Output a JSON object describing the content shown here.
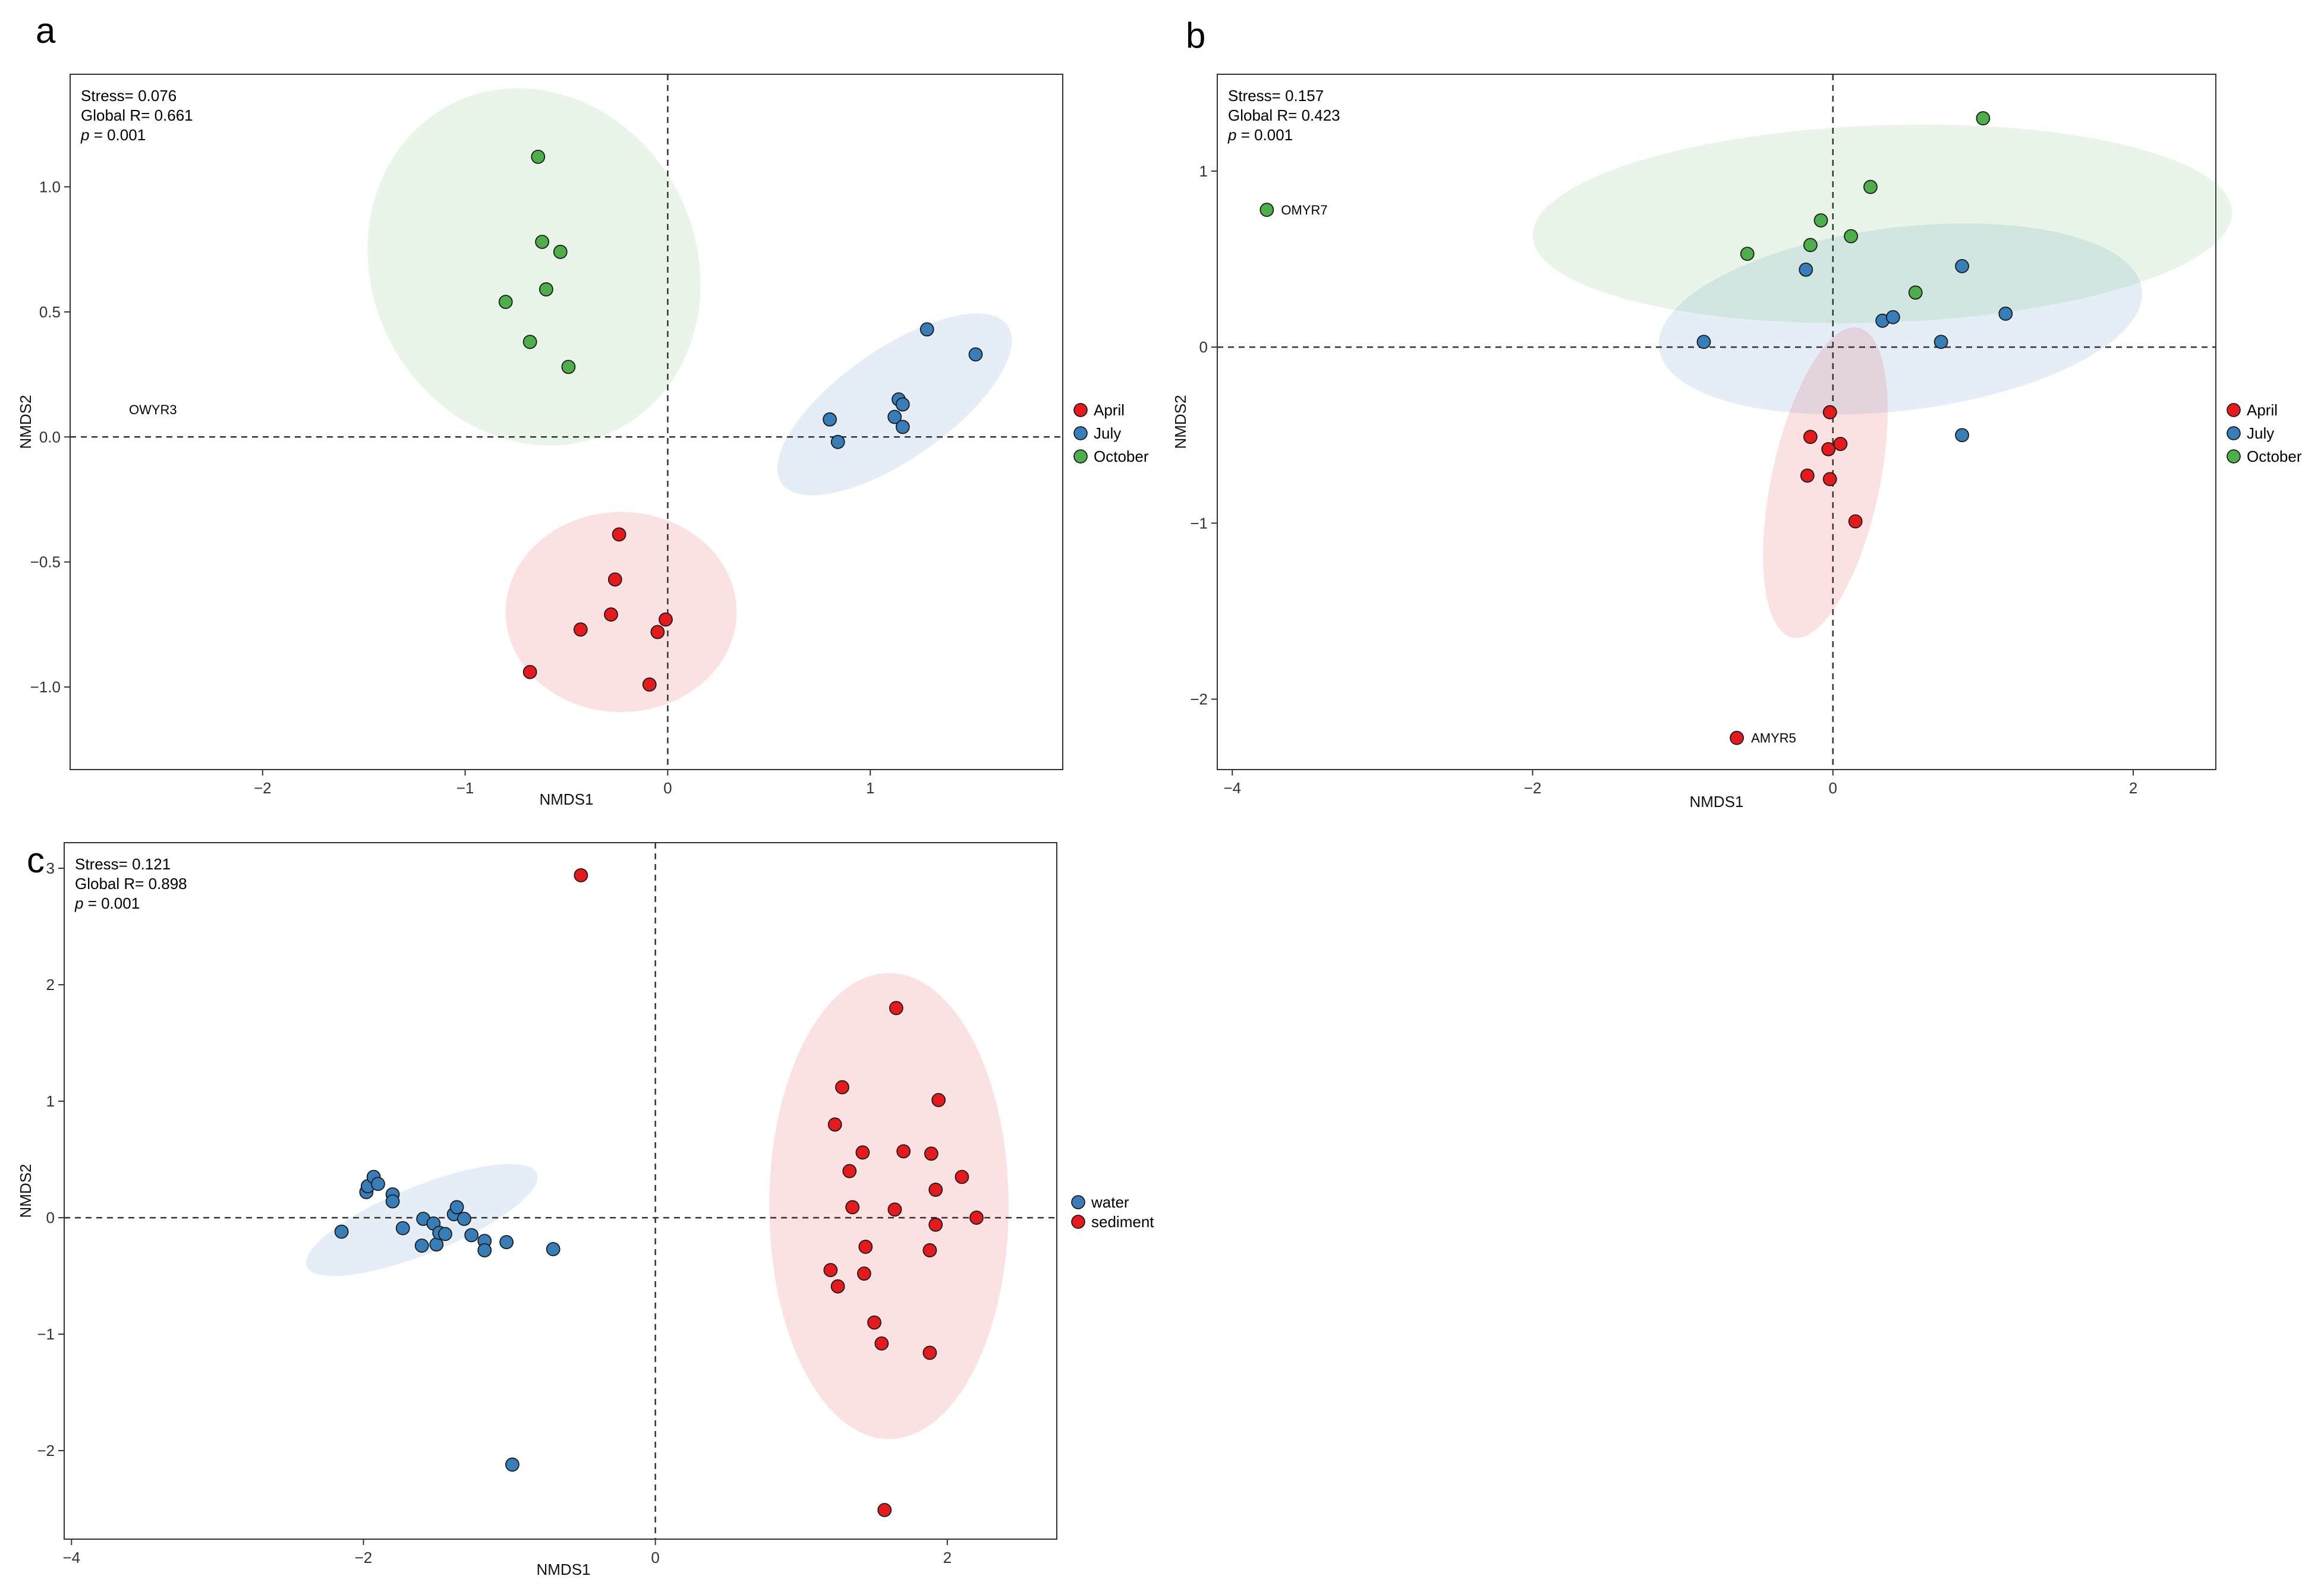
{
  "chart_data": [
    {
      "panel": "a",
      "type": "scatter",
      "xlabel": "NMDS1",
      "ylabel": "NMDS2",
      "xlim": [
        -2.95,
        1.95
      ],
      "ylim": [
        -1.33,
        1.45
      ],
      "xticks": [
        {
          "v": -2,
          "label": "−2"
        },
        {
          "v": -1,
          "label": "−1"
        },
        {
          "v": 0,
          "label": "0"
        },
        {
          "v": 1,
          "label": "1"
        }
      ],
      "yticks": [
        {
          "v": -1,
          "label": "−1.0"
        },
        {
          "v": -0.5,
          "label": "−0.5"
        },
        {
          "v": 0,
          "label": "0.0"
        },
        {
          "v": 0.5,
          "label": "0.5"
        },
        {
          "v": 1,
          "label": "1.0"
        }
      ],
      "stats": {
        "stress": "Stress= 0.076",
        "global_r": "Global R= 0.661",
        "p_italic": "p",
        "p_rest": " = 0.001"
      },
      "annotations": [
        {
          "text": "OWYR3",
          "x": -2.73,
          "y": 0.11
        }
      ],
      "series": [
        {
          "name": "April",
          "color": "#e41a1c",
          "points": [
            [
              -0.24,
              -0.39
            ],
            [
              -0.26,
              -0.57
            ],
            [
              -0.28,
              -0.71
            ],
            [
              -0.43,
              -0.77
            ],
            [
              -0.68,
              -0.94
            ],
            [
              -0.05,
              -0.78
            ],
            [
              -0.01,
              -0.73
            ],
            [
              -0.09,
              -0.99
            ]
          ],
          "ellipse": {
            "cx": -0.23,
            "cy": -0.7,
            "rx": 0.57,
            "ry": 0.4,
            "angle": 0
          }
        },
        {
          "name": "July",
          "color": "#377eb8",
          "points": [
            [
              0.8,
              0.07
            ],
            [
              0.84,
              -0.02
            ],
            [
              1.12,
              0.08
            ],
            [
              1.14,
              0.15
            ],
            [
              1.16,
              0.13
            ],
            [
              1.16,
              0.04
            ],
            [
              1.28,
              0.43
            ],
            [
              1.52,
              0.33
            ]
          ],
          "ellipse": {
            "cx": 1.12,
            "cy": 0.13,
            "rx": 0.68,
            "ry": 0.22,
            "angle": -35
          }
        },
        {
          "name": "October",
          "color": "#4daf4a",
          "points": [
            [
              -0.64,
              1.12
            ],
            [
              -0.62,
              0.78
            ],
            [
              -0.53,
              0.74
            ],
            [
              -0.6,
              0.59
            ],
            [
              -0.8,
              0.54
            ],
            [
              -0.68,
              0.38
            ],
            [
              -0.49,
              0.28
            ]
          ],
          "ellipse": {
            "cx": -0.66,
            "cy": 0.68,
            "rx": 0.8,
            "ry": 0.73,
            "angle": -27
          }
        }
      ],
      "legend": [
        "April",
        "July",
        "October"
      ]
    },
    {
      "panel": "b",
      "type": "scatter",
      "xlabel": "NMDS1",
      "ylabel": "NMDS2",
      "xlim": [
        -4.1,
        2.55
      ],
      "ylim": [
        -2.4,
        1.55
      ],
      "xticks": [
        {
          "v": -4,
          "label": "−4"
        },
        {
          "v": -2,
          "label": "−2"
        },
        {
          "v": 0,
          "label": "0"
        },
        {
          "v": 2,
          "label": "2"
        }
      ],
      "yticks": [
        {
          "v": -2,
          "label": "−2"
        },
        {
          "v": -1,
          "label": "−1"
        },
        {
          "v": 0,
          "label": "0"
        },
        {
          "v": 1,
          "label": "1"
        }
      ],
      "stats": {
        "stress": "Stress= 0.157",
        "global_r": "Global R= 0.423",
        "p_italic": "p",
        "p_rest": " = 0.001"
      },
      "annotations": [
        {
          "text": "OMYR7",
          "x": -3.77,
          "y": 0.78
        },
        {
          "text": "AMYR5",
          "x": -0.64,
          "y": -2.22
        }
      ],
      "series": [
        {
          "name": "April",
          "color": "#e41a1c",
          "points": [
            [
              -0.02,
              -0.37
            ],
            [
              -0.15,
              -0.51
            ],
            [
              -0.03,
              -0.58
            ],
            [
              0.05,
              -0.55
            ],
            [
              -0.17,
              -0.73
            ],
            [
              -0.02,
              -0.75
            ],
            [
              0.15,
              -0.99
            ],
            [
              -0.64,
              -2.22
            ]
          ],
          "ellipse": {
            "cx": -0.05,
            "cy": -0.77,
            "rx": 0.36,
            "ry": 0.9,
            "angle": 12
          }
        },
        {
          "name": "July",
          "color": "#377eb8",
          "points": [
            [
              -0.86,
              0.03
            ],
            [
              -0.18,
              0.44
            ],
            [
              0.33,
              0.15
            ],
            [
              0.4,
              0.17
            ],
            [
              0.72,
              0.03
            ],
            [
              0.86,
              0.46
            ],
            [
              1.15,
              0.19
            ],
            [
              0.86,
              -0.5
            ]
          ],
          "ellipse": {
            "cx": 0.45,
            "cy": 0.16,
            "rx": 1.62,
            "ry": 0.52,
            "angle": -7
          }
        },
        {
          "name": "October",
          "color": "#4daf4a",
          "points": [
            [
              -0.57,
              0.53
            ],
            [
              -0.15,
              0.58
            ],
            [
              -0.08,
              0.72
            ],
            [
              0.12,
              0.63
            ],
            [
              0.25,
              0.91
            ],
            [
              0.55,
              0.31
            ],
            [
              1.0,
              1.3
            ],
            [
              -3.77,
              0.78
            ]
          ],
          "ellipse": {
            "cx": 0.33,
            "cy": 0.7,
            "rx": 2.33,
            "ry": 0.56,
            "angle": -2
          }
        }
      ],
      "legend": [
        "April",
        "July",
        "October"
      ]
    },
    {
      "panel": "c",
      "type": "scatter",
      "xlabel": "NMDS1",
      "ylabel": "NMDS2",
      "xlim": [
        -4.05,
        2.75
      ],
      "ylim": [
        -2.76,
        3.22
      ],
      "xticks": [
        {
          "v": -4,
          "label": "−4"
        },
        {
          "v": -2,
          "label": "−2"
        },
        {
          "v": 0,
          "label": "0"
        },
        {
          "v": 2,
          "label": "2"
        }
      ],
      "yticks": [
        {
          "v": -2,
          "label": "−2"
        },
        {
          "v": -1,
          "label": "−1"
        },
        {
          "v": 0,
          "label": "0"
        },
        {
          "v": 1,
          "label": "1"
        },
        {
          "v": 2,
          "label": "2"
        },
        {
          "v": 3,
          "label": "3"
        }
      ],
      "stats": {
        "stress": "Stress= 0.121",
        "global_r": "Global R= 0.898",
        "p_italic": "p",
        "p_rest": " = 0.001"
      },
      "annotations": [],
      "series": [
        {
          "name": "water",
          "color": "#377eb8",
          "points": [
            [
              -2.15,
              -0.12
            ],
            [
              -1.98,
              0.22
            ],
            [
              -1.97,
              0.27
            ],
            [
              -1.93,
              0.35
            ],
            [
              -1.9,
              0.29
            ],
            [
              -1.8,
              0.2
            ],
            [
              -1.8,
              0.14
            ],
            [
              -1.73,
              -0.09
            ],
            [
              -1.6,
              -0.24
            ],
            [
              -1.59,
              -0.01
            ],
            [
              -1.52,
              -0.05
            ],
            [
              -1.5,
              -0.23
            ],
            [
              -1.48,
              -0.13
            ],
            [
              -1.44,
              -0.14
            ],
            [
              -1.38,
              0.03
            ],
            [
              -1.36,
              0.09
            ],
            [
              -1.31,
              -0.01
            ],
            [
              -1.26,
              -0.15
            ],
            [
              -1.17,
              -0.2
            ],
            [
              -1.17,
              -0.28
            ],
            [
              -1.02,
              -0.21
            ],
            [
              -0.7,
              -0.27
            ],
            [
              -0.98,
              -2.12
            ]
          ],
          "ellipse": {
            "cx": -1.6,
            "cy": -0.02,
            "rx": 0.85,
            "ry": 0.29,
            "angle": -22
          }
        },
        {
          "name": "sediment",
          "color": "#e41a1c",
          "points": [
            [
              -0.51,
              2.94
            ],
            [
              1.65,
              1.8
            ],
            [
              1.28,
              1.12
            ],
            [
              1.94,
              1.01
            ],
            [
              1.23,
              0.8
            ],
            [
              1.42,
              0.56
            ],
            [
              1.7,
              0.57
            ],
            [
              1.89,
              0.55
            ],
            [
              1.33,
              0.4
            ],
            [
              2.1,
              0.35
            ],
            [
              1.92,
              0.24
            ],
            [
              1.35,
              0.09
            ],
            [
              1.64,
              0.07
            ],
            [
              2.2,
              0.0
            ],
            [
              1.92,
              -0.06
            ],
            [
              1.44,
              -0.25
            ],
            [
              1.88,
              -0.28
            ],
            [
              1.2,
              -0.45
            ],
            [
              1.43,
              -0.48
            ],
            [
              1.25,
              -0.59
            ],
            [
              1.5,
              -0.9
            ],
            [
              1.55,
              -1.08
            ],
            [
              1.88,
              -1.16
            ],
            [
              1.57,
              -2.51
            ]
          ],
          "ellipse": {
            "cx": 1.6,
            "cy": 0.1,
            "rx": 0.82,
            "ry": 2.0,
            "angle": 0
          }
        }
      ],
      "legend": [
        "water",
        "sediment"
      ]
    }
  ]
}
